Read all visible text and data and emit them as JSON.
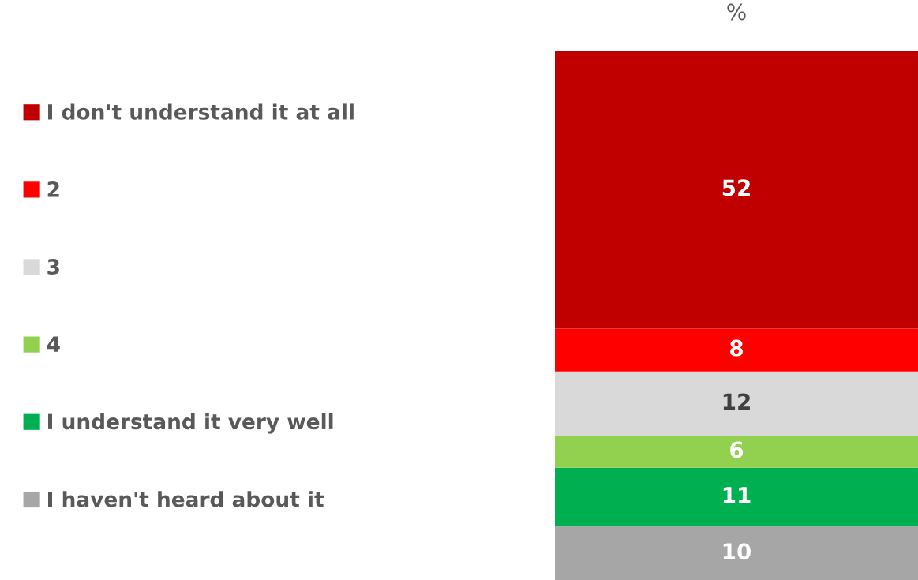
{
  "chart_data": {
    "type": "bar",
    "stacked": true,
    "categories": [
      null
    ],
    "xlabel": "%",
    "data_labels": true,
    "legend": "left",
    "series": [
      {
        "name": "I haven't heard about it",
        "color": "#a6a6a6",
        "values": [
          10
        ]
      },
      {
        "name": "I understand it very well",
        "color": "#00b050",
        "values": [
          11
        ]
      },
      {
        "name": "4",
        "color": "#92d050",
        "values": [
          6
        ]
      },
      {
        "name": "3",
        "color": "#d9d9d9",
        "values": [
          12
        ]
      },
      {
        "name": "2",
        "color": "#ff0000",
        "values": [
          8
        ]
      },
      {
        "name": "I don't understand it at all",
        "color": "#c00000",
        "values": [
          52
        ]
      }
    ]
  }
}
